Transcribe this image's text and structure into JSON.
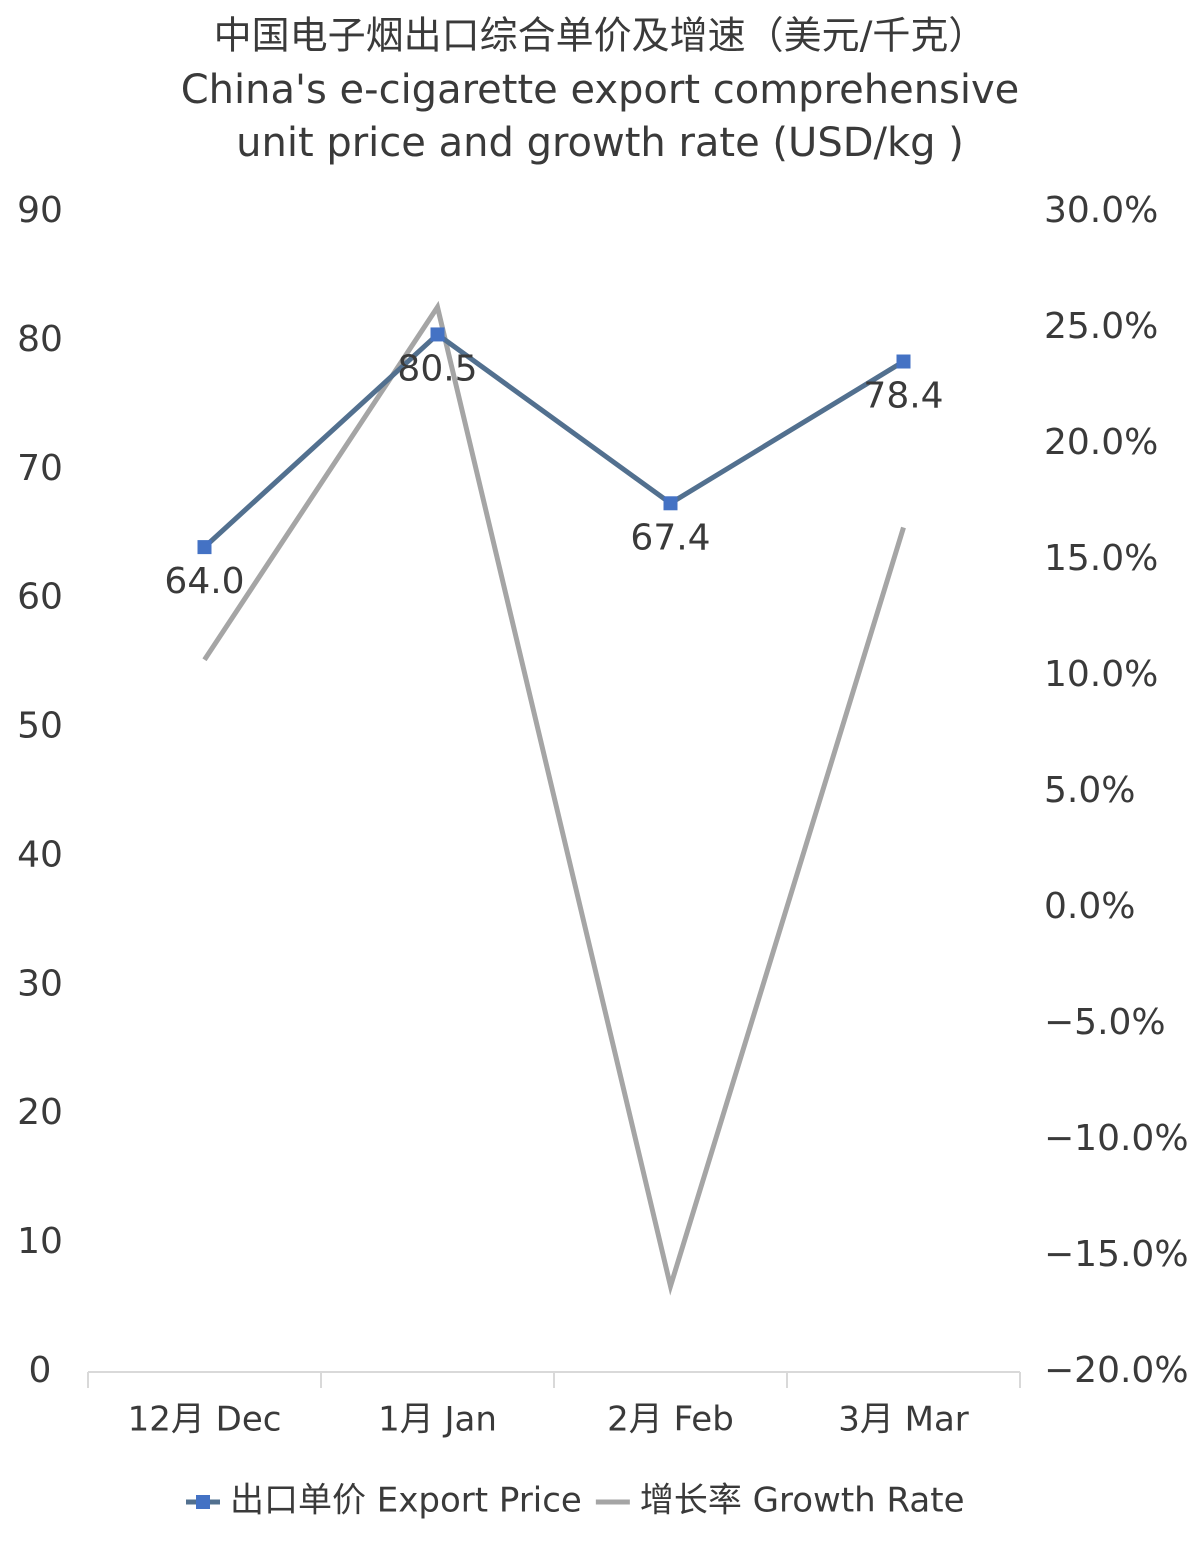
{
  "chart_data": {
    "type": "line",
    "title": "中国电子烟出口综合单价及增速（美元/千克）",
    "subtitle": [
      "China's e-cigarette export comprehensive",
      "unit price and growth rate (USD/kg )"
    ],
    "categories": [
      "12月 Dec",
      "1月 Jan",
      "2月 Feb",
      "3月 Mar"
    ],
    "series": [
      {
        "name": "出口单价 Export Price",
        "color": "#52708f",
        "marker_color": "#4472c4",
        "values": [
          64.0,
          80.5,
          67.4,
          78.4
        ],
        "value_labels": [
          "64.0",
          "80.5",
          "67.4",
          "78.4"
        ]
      },
      {
        "name": "增长率 Growth Rate",
        "color": "#a5a5a5",
        "axis": "y2",
        "values": [
          10.7,
          25.9,
          -16.3,
          16.4
        ]
      }
    ],
    "ylim": [
      0,
      90
    ],
    "yticks": [
      0,
      10,
      20,
      30,
      40,
      50,
      60,
      70,
      80,
      90
    ],
    "y2lim": [
      -20,
      30
    ],
    "y2ticks": [
      {
        "value": -20,
        "label": "−20.0%"
      },
      {
        "value": -15,
        "label": "−15.0%"
      },
      {
        "value": -10,
        "label": "−10.0%"
      },
      {
        "value": -5,
        "label": "−5.0%"
      },
      {
        "value": 0,
        "label": "0.0%"
      },
      {
        "value": 5,
        "label": "5.0%"
      },
      {
        "value": 10,
        "label": "10.0%"
      },
      {
        "value": 15,
        "label": "15.0%"
      },
      {
        "value": 20,
        "label": "20.0%"
      },
      {
        "value": 25,
        "label": "25.0%"
      },
      {
        "value": 30,
        "label": "30.0%"
      }
    ],
    "legend": "bottom",
    "grid": false
  }
}
